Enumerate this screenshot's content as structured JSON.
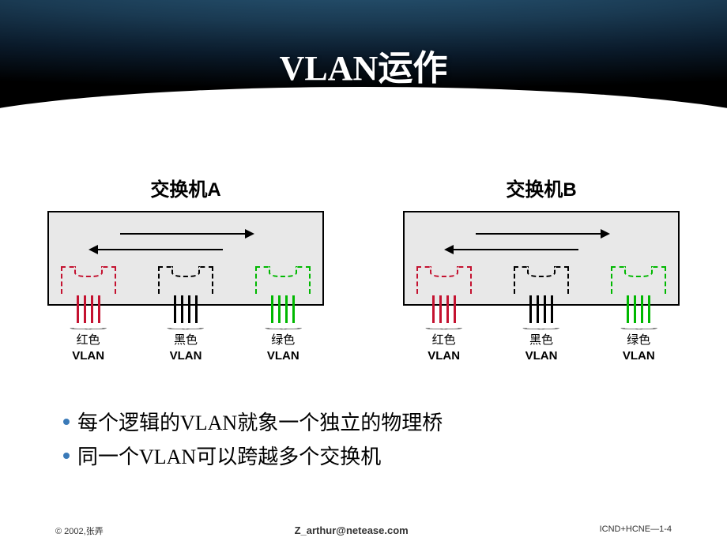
{
  "title": "VLAN运作",
  "switches": [
    {
      "label": "交换机A"
    },
    {
      "label": "交换机B"
    }
  ],
  "vlans": [
    {
      "name_cn": "红色",
      "name_en": "VLAN",
      "color": "#c41230"
    },
    {
      "name_cn": "黑色",
      "name_en": "VLAN",
      "color": "#000000"
    },
    {
      "name_cn": "绿色",
      "name_en": "VLAN",
      "color": "#00b800"
    }
  ],
  "ports_per_vlan": 4,
  "bullets": [
    "每个逻辑的VLAN就象一个独立的物理桥",
    "同一个VLAN可以跨越多个交换机"
  ],
  "footer": {
    "left": "© 2002,张弄",
    "center": "Z_arthur@netease.com",
    "right": "ICND+HCNE—1-4"
  },
  "colors": {
    "header_gradient_inner": "#2a5a7a",
    "header_gradient_outer": "#000000",
    "switch_bg": "#e8e8e8",
    "bullet_dot": "#3a7ab8",
    "background": "#ffffff"
  }
}
